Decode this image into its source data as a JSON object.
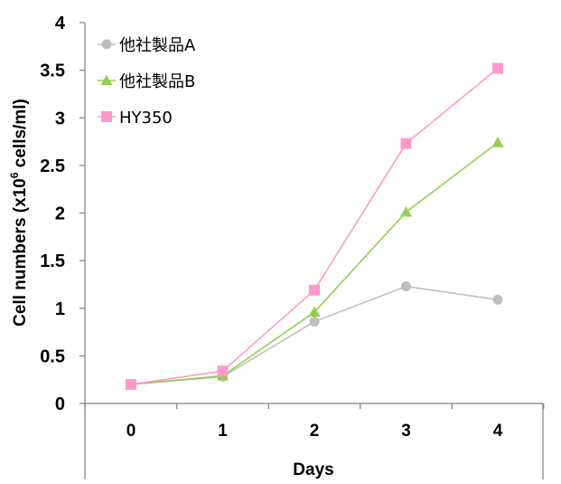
{
  "chart_data": {
    "type": "line",
    "x": [
      0,
      1,
      2,
      3,
      4
    ],
    "xlabel": "Days",
    "ylabel": {
      "prefix": "Cell numbers (x10",
      "sup": "6",
      "suffix": " cells/ml)"
    },
    "ylim": [
      0,
      4
    ],
    "yticks": [
      "0",
      "0.5",
      "1",
      "1.5",
      "2",
      "2.5",
      "3",
      "3.5",
      "4"
    ],
    "xticks": [
      "0",
      "1",
      "2",
      "3",
      "4"
    ],
    "grid": false,
    "legend_position": "top-left",
    "series": [
      {
        "name": "他社製品A",
        "marker": "circle",
        "color": "#bfbfbf",
        "values": [
          0.2,
          0.28,
          0.86,
          1.23,
          1.09
        ]
      },
      {
        "name": "他社製品B",
        "marker": "triangle",
        "color": "#92d050",
        "values": [
          0.2,
          0.29,
          0.96,
          2.01,
          2.74
        ]
      },
      {
        "name": "HY350",
        "marker": "square",
        "color": "#ff99cc",
        "values": [
          0.2,
          0.34,
          1.19,
          2.73,
          3.52
        ]
      }
    ]
  }
}
